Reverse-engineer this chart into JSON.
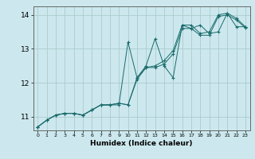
{
  "title": "",
  "xlabel": "Humidex (Indice chaleur)",
  "ylabel": "",
  "bg_color": "#cce8ee",
  "grid_color": "#aacccc",
  "line_color": "#1a6b6b",
  "xlim": [
    -0.5,
    23.5
  ],
  "ylim": [
    10.6,
    14.25
  ],
  "xticks": [
    0,
    1,
    2,
    3,
    4,
    5,
    6,
    7,
    8,
    9,
    10,
    11,
    12,
    13,
    14,
    15,
    16,
    17,
    18,
    19,
    20,
    21,
    22,
    23
  ],
  "yticks": [
    11,
    12,
    13,
    14
  ],
  "series1": {
    "x": [
      0,
      1,
      2,
      3,
      4,
      5,
      6,
      7,
      8,
      9,
      10,
      11,
      12,
      13,
      14,
      15,
      16,
      17,
      18,
      19,
      20,
      21,
      22,
      23
    ],
    "y": [
      10.7,
      10.9,
      11.05,
      11.1,
      11.1,
      11.05,
      11.2,
      11.35,
      11.35,
      11.35,
      13.2,
      12.15,
      12.45,
      12.5,
      12.65,
      12.95,
      13.7,
      13.7,
      13.45,
      13.5,
      14.0,
      14.05,
      13.9,
      13.65
    ]
  },
  "series2": {
    "x": [
      0,
      1,
      2,
      3,
      4,
      5,
      6,
      7,
      8,
      9,
      10,
      11,
      12,
      13,
      14,
      15,
      16,
      17,
      18,
      19,
      20,
      21,
      22,
      23
    ],
    "y": [
      10.7,
      10.9,
      11.05,
      11.1,
      11.1,
      11.05,
      11.2,
      11.35,
      11.35,
      11.4,
      11.35,
      12.15,
      12.5,
      13.3,
      12.5,
      12.15,
      13.7,
      13.6,
      13.7,
      13.45,
      13.5,
      14.05,
      13.65,
      13.65
    ]
  },
  "series3": {
    "x": [
      0,
      1,
      2,
      3,
      4,
      5,
      6,
      7,
      8,
      9,
      10,
      11,
      12,
      13,
      14,
      15,
      16,
      17,
      18,
      19,
      20,
      21,
      22,
      23
    ],
    "y": [
      10.7,
      10.9,
      11.05,
      11.1,
      11.1,
      11.05,
      11.2,
      11.35,
      11.35,
      11.4,
      11.35,
      12.1,
      12.45,
      12.45,
      12.55,
      12.85,
      13.6,
      13.6,
      13.4,
      13.4,
      13.95,
      14.0,
      13.85,
      13.62
    ]
  }
}
